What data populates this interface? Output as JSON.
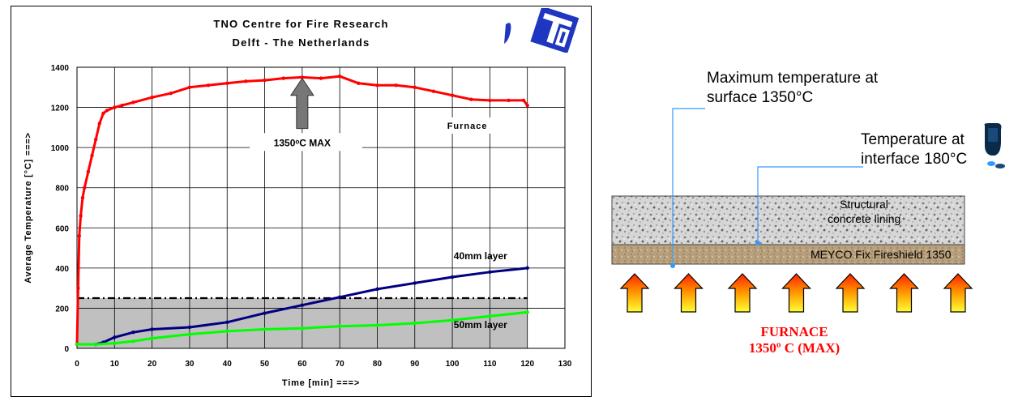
{
  "chart_data": {
    "type": "line",
    "title": "TNO  Centre for Fire Research",
    "subtitle": "Delft - The Netherlands",
    "xlabel": "Time [min] ===>",
    "ylabel": "Average Temperature [°C] ===>",
    "xlim": [
      0,
      130
    ],
    "ylim": [
      0,
      1400
    ],
    "x_ticks": [
      0,
      10,
      20,
      30,
      40,
      50,
      60,
      70,
      80,
      90,
      100,
      110,
      120,
      130
    ],
    "y_ticks": [
      0,
      200,
      400,
      600,
      800,
      1000,
      1200,
      1400
    ],
    "grid": true,
    "shaded_region": {
      "x": [
        0,
        120
      ],
      "y": [
        0,
        250
      ],
      "color": "#c0c0c0"
    },
    "limit_line": {
      "y": 250,
      "x": [
        0,
        120
      ],
      "style": "dash-dot"
    },
    "series": [
      {
        "name": "Furnace",
        "color": "#ff0000",
        "x": [
          0,
          0.3,
          0.6,
          1,
          1.5,
          2,
          3,
          4,
          5,
          6,
          7,
          8,
          10,
          12,
          15,
          20,
          25,
          30,
          35,
          40,
          45,
          50,
          55,
          60,
          65,
          70,
          75,
          80,
          85,
          90,
          95,
          100,
          105,
          110,
          115,
          119,
          120
        ],
        "y": [
          20,
          300,
          560,
          660,
          750,
          800,
          880,
          960,
          1040,
          1120,
          1170,
          1185,
          1200,
          1210,
          1225,
          1250,
          1270,
          1300,
          1310,
          1320,
          1330,
          1335,
          1345,
          1350,
          1345,
          1355,
          1320,
          1310,
          1310,
          1300,
          1280,
          1260,
          1240,
          1235,
          1235,
          1235,
          1210
        ]
      },
      {
        "name": "40mm layer",
        "color": "#000080",
        "x": [
          0,
          5,
          7,
          10,
          15,
          20,
          30,
          40,
          50,
          60,
          70,
          80,
          90,
          100,
          110,
          120
        ],
        "y": [
          20,
          20,
          30,
          55,
          80,
          95,
          105,
          130,
          175,
          215,
          255,
          295,
          325,
          355,
          380,
          400
        ]
      },
      {
        "name": "50mm layer",
        "color": "#00ff00",
        "x": [
          0,
          5,
          10,
          15,
          20,
          30,
          40,
          50,
          60,
          70,
          80,
          90,
          100,
          110,
          120
        ],
        "y": [
          20,
          20,
          25,
          35,
          50,
          70,
          85,
          95,
          100,
          110,
          115,
          125,
          140,
          160,
          180
        ]
      }
    ],
    "annotations": {
      "max_label": "1350ᵒC MAX",
      "furnace_label": "Furnace",
      "layer40_label": "40mm layer",
      "layer50_label": "50mm layer"
    }
  },
  "diagram": {
    "max_temp_label_line1": "Maximum temperature at",
    "max_temp_label_line2": "surface 1350°C",
    "interface_label_line1": "Temperature at",
    "interface_label_line2": "interface 180°C",
    "concrete_label_line1": "Structural",
    "concrete_label_line2": "concrete lining",
    "layer_label": "MEYCO Fix Fireshield 1350",
    "furnace_line1": "FURNACE",
    "furnace_line2": "1350º C (MAX)",
    "arrow_count": 7,
    "colors": {
      "furnace_text": "#ff0000",
      "pointer_line": "#3399ff"
    }
  }
}
